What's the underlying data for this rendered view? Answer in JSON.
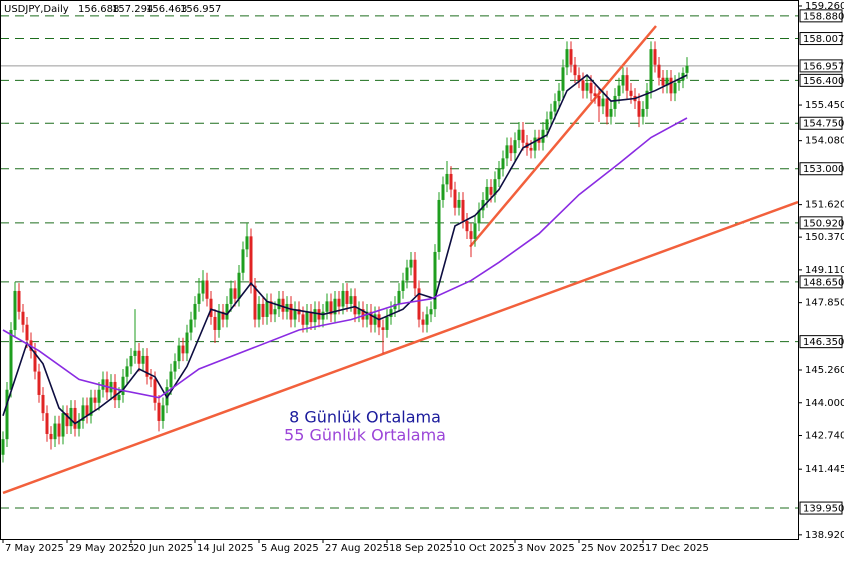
{
  "chart_data": {
    "type": "candlestick",
    "symbol": "USDJPY,Daily",
    "up_color": "#1f9e1f",
    "down_color": "#e02424",
    "xlim": [
      -0.75,
      198.75
    ],
    "ylim": [
      138.76,
      159.49
    ],
    "yticks": [
      {
        "value": 159.26,
        "label": "159.260"
      },
      {
        "value": 155.45,
        "label": "155.450"
      },
      {
        "value": 154.08,
        "label": "154.080"
      },
      {
        "value": 151.62,
        "label": "151.620"
      },
      {
        "value": 150.37,
        "label": "150.370"
      },
      {
        "value": 149.11,
        "label": "149.110"
      },
      {
        "value": 147.85,
        "label": "147.850"
      },
      {
        "value": 145.26,
        "label": "145.260"
      },
      {
        "value": 144.0,
        "label": "144.000"
      },
      {
        "value": 142.74,
        "label": "142.740"
      },
      {
        "value": 141.445,
        "label": "141.445"
      },
      {
        "value": 138.92,
        "label": "138.920"
      }
    ],
    "xticks": [
      {
        "value": 0,
        "label": "7 May 2025"
      },
      {
        "value": 16,
        "label": "29 May 2025"
      },
      {
        "value": 32,
        "label": "20 Jun 2025"
      },
      {
        "value": 48,
        "label": "14 Jul 2025"
      },
      {
        "value": 64,
        "label": "5 Aug 2025"
      },
      {
        "value": 80,
        "label": "27 Aug 2025"
      },
      {
        "value": 96,
        "label": "18 Sep 2025"
      },
      {
        "value": 112,
        "label": "10 Oct 2025"
      },
      {
        "value": 128,
        "label": "3 Nov 2025"
      },
      {
        "value": 144,
        "label": "25 Nov 2025"
      },
      {
        "value": 160,
        "label": "17 Dec 2025"
      }
    ],
    "levels_color": "#1d6e1d",
    "current_color": "#9a9a9a",
    "levels": [
      {
        "value": 158.88,
        "label": "158.880"
      },
      {
        "value": 158.007,
        "label": "158.007"
      },
      {
        "value": 156.4,
        "label": "156.400"
      },
      {
        "value": 154.75,
        "label": "154.750"
      },
      {
        "value": 153.0,
        "label": "153.000"
      },
      {
        "value": 150.92,
        "label": "150.920"
      },
      {
        "value": 148.65,
        "label": "148.650"
      },
      {
        "value": 146.35,
        "label": "146.350"
      },
      {
        "value": 139.95,
        "label": "139.950"
      }
    ],
    "candles": [
      [
        142.0,
        142.9,
        141.7,
        142.6
      ],
      [
        142.6,
        144.8,
        142.3,
        144.5
      ],
      [
        144.5,
        147.1,
        144.2,
        146.8
      ],
      [
        146.8,
        148.65,
        146.5,
        148.3
      ],
      [
        148.3,
        148.6,
        147.2,
        147.5
      ],
      [
        147.5,
        147.8,
        146.7,
        147.0
      ],
      [
        147.0,
        147.3,
        146.1,
        146.4
      ],
      [
        146.4,
        146.7,
        145.7,
        146.0
      ],
      [
        146.0,
        146.3,
        144.9,
        145.2
      ],
      [
        145.2,
        145.5,
        144.0,
        144.3
      ],
      [
        144.3,
        144.6,
        143.3,
        143.6
      ],
      [
        143.6,
        143.9,
        142.5,
        142.8
      ],
      [
        142.8,
        143.1,
        142.2,
        142.6
      ],
      [
        142.6,
        143.5,
        142.3,
        143.2
      ],
      [
        143.2,
        143.5,
        142.4,
        142.7
      ],
      [
        142.7,
        143.9,
        142.4,
        143.6
      ],
      [
        143.6,
        143.9,
        142.8,
        143.1
      ],
      [
        143.1,
        144.1,
        142.8,
        143.8
      ],
      [
        143.8,
        144.1,
        142.7,
        143.0
      ],
      [
        143.0,
        143.6,
        142.7,
        143.3
      ],
      [
        143.3,
        144.2,
        143.0,
        143.9
      ],
      [
        143.9,
        144.2,
        143.2,
        143.5
      ],
      [
        143.5,
        144.5,
        143.2,
        144.2
      ],
      [
        144.2,
        144.5,
        143.7,
        144.0
      ],
      [
        144.0,
        144.8,
        143.7,
        144.5
      ],
      [
        144.5,
        145.2,
        144.2,
        144.9
      ],
      [
        144.9,
        145.2,
        144.1,
        144.4
      ],
      [
        144.4,
        145.1,
        144.1,
        144.8
      ],
      [
        144.8,
        145.1,
        143.8,
        144.1
      ],
      [
        144.1,
        144.6,
        143.8,
        144.3
      ],
      [
        144.3,
        145.3,
        144.0,
        145.0
      ],
      [
        145.0,
        145.7,
        144.7,
        145.4
      ],
      [
        145.4,
        146.1,
        145.1,
        145.8
      ],
      [
        145.8,
        147.6,
        145.5,
        146.0
      ],
      [
        146.0,
        146.3,
        145.2,
        145.5
      ],
      [
        145.5,
        146.1,
        145.2,
        145.8
      ],
      [
        145.8,
        146.1,
        144.7,
        145.0
      ],
      [
        145.0,
        145.3,
        144.6,
        144.9
      ],
      [
        144.9,
        145.2,
        143.7,
        144.0
      ],
      [
        144.0,
        144.3,
        142.9,
        143.3
      ],
      [
        143.3,
        144.2,
        143.0,
        143.9
      ],
      [
        143.9,
        144.9,
        143.6,
        144.6
      ],
      [
        144.6,
        145.5,
        144.3,
        145.2
      ],
      [
        145.2,
        145.9,
        144.9,
        145.6
      ],
      [
        145.6,
        146.5,
        145.3,
        146.2
      ],
      [
        146.2,
        146.5,
        145.6,
        145.9
      ],
      [
        145.9,
        147.0,
        145.6,
        146.7
      ],
      [
        146.7,
        147.5,
        146.4,
        147.2
      ],
      [
        147.2,
        148.1,
        146.9,
        147.8
      ],
      [
        147.8,
        148.8,
        147.5,
        148.2
      ],
      [
        148.2,
        149.1,
        147.9,
        148.7
      ],
      [
        148.7,
        149.0,
        147.7,
        148.0
      ],
      [
        148.0,
        148.3,
        147.0,
        147.3
      ],
      [
        147.3,
        147.6,
        146.3,
        146.8
      ],
      [
        146.8,
        147.8,
        146.5,
        147.5
      ],
      [
        147.5,
        147.8,
        146.9,
        147.2
      ],
      [
        147.2,
        148.1,
        146.9,
        147.8
      ],
      [
        147.8,
        148.7,
        147.5,
        148.4
      ],
      [
        148.4,
        148.7,
        147.7,
        148.0
      ],
      [
        148.0,
        149.3,
        147.7,
        149.0
      ],
      [
        149.0,
        150.2,
        148.7,
        149.9
      ],
      [
        149.9,
        150.9,
        149.6,
        150.4
      ],
      [
        150.4,
        150.7,
        148.2,
        148.5
      ],
      [
        148.5,
        148.8,
        146.9,
        147.2
      ],
      [
        147.2,
        148.1,
        146.9,
        147.8
      ],
      [
        147.8,
        148.1,
        147.0,
        147.3
      ],
      [
        147.3,
        148.2,
        147.0,
        147.9
      ],
      [
        147.9,
        148.2,
        147.1,
        147.4
      ],
      [
        147.4,
        147.9,
        147.1,
        147.6
      ],
      [
        147.6,
        148.3,
        147.3,
        148.0
      ],
      [
        148.0,
        148.3,
        147.2,
        147.5
      ],
      [
        147.5,
        148.1,
        147.2,
        147.8
      ],
      [
        147.8,
        148.1,
        146.9,
        147.2
      ],
      [
        147.2,
        147.9,
        146.9,
        147.6
      ],
      [
        147.6,
        147.9,
        147.1,
        147.4
      ],
      [
        147.4,
        147.7,
        146.7,
        147.0
      ],
      [
        147.0,
        147.8,
        146.7,
        147.5
      ],
      [
        147.5,
        147.8,
        146.8,
        147.1
      ],
      [
        147.1,
        147.9,
        146.8,
        147.6
      ],
      [
        147.6,
        147.9,
        146.9,
        147.2
      ],
      [
        147.2,
        147.8,
        146.9,
        147.5
      ],
      [
        147.5,
        148.2,
        147.2,
        147.9
      ],
      [
        147.9,
        148.2,
        147.1,
        147.4
      ],
      [
        147.4,
        148.3,
        147.1,
        148.0
      ],
      [
        148.0,
        148.3,
        147.4,
        147.7
      ],
      [
        147.7,
        148.6,
        147.4,
        148.3
      ],
      [
        148.3,
        148.6,
        147.5,
        147.8
      ],
      [
        147.8,
        148.4,
        147.5,
        148.1
      ],
      [
        148.1,
        148.4,
        147.1,
        147.4
      ],
      [
        147.4,
        147.9,
        147.1,
        147.6
      ],
      [
        147.6,
        147.9,
        146.9,
        147.2
      ],
      [
        147.2,
        147.8,
        146.9,
        147.5
      ],
      [
        147.5,
        147.8,
        146.7,
        147.0
      ],
      [
        147.0,
        147.7,
        146.7,
        147.4
      ],
      [
        147.4,
        147.7,
        146.6,
        146.9
      ],
      [
        146.9,
        147.2,
        145.9,
        146.8
      ],
      [
        146.8,
        147.6,
        146.5,
        147.3
      ],
      [
        147.3,
        147.9,
        147.0,
        147.6
      ],
      [
        147.6,
        148.1,
        147.3,
        147.8
      ],
      [
        147.8,
        148.6,
        147.5,
        148.3
      ],
      [
        148.3,
        149.0,
        148.0,
        148.7
      ],
      [
        148.7,
        149.5,
        148.4,
        149.2
      ],
      [
        149.2,
        149.8,
        148.9,
        149.5
      ],
      [
        149.5,
        149.8,
        148.1,
        148.4
      ],
      [
        148.4,
        148.7,
        146.9,
        147.2
      ],
      [
        147.2,
        147.5,
        146.7,
        147.0
      ],
      [
        147.0,
        147.7,
        146.7,
        147.4
      ],
      [
        147.4,
        147.9,
        147.1,
        147.6
      ],
      [
        147.6,
        150.1,
        147.3,
        149.8
      ],
      [
        149.8,
        152.1,
        149.5,
        151.8
      ],
      [
        151.8,
        152.7,
        151.5,
        152.4
      ],
      [
        152.4,
        153.3,
        152.1,
        152.8
      ],
      [
        152.8,
        153.1,
        151.9,
        152.2
      ],
      [
        152.2,
        152.5,
        151.2,
        151.5
      ],
      [
        151.5,
        152.1,
        151.2,
        151.8
      ],
      [
        151.8,
        152.1,
        150.7,
        151.0
      ],
      [
        151.0,
        151.3,
        150.3,
        150.6
      ],
      [
        150.6,
        150.9,
        149.6,
        150.3
      ],
      [
        150.3,
        151.2,
        150.0,
        150.9
      ],
      [
        150.9,
        151.7,
        150.6,
        151.4
      ],
      [
        151.4,
        152.1,
        151.1,
        151.8
      ],
      [
        151.8,
        152.6,
        151.5,
        152.3
      ],
      [
        152.3,
        152.6,
        151.7,
        152.0
      ],
      [
        152.0,
        152.9,
        151.7,
        152.6
      ],
      [
        152.6,
        153.3,
        152.3,
        153.0
      ],
      [
        153.0,
        153.7,
        152.7,
        153.4
      ],
      [
        153.4,
        154.2,
        153.1,
        153.9
      ],
      [
        153.9,
        154.2,
        153.3,
        153.6
      ],
      [
        153.6,
        154.4,
        153.3,
        154.1
      ],
      [
        154.1,
        154.8,
        153.8,
        154.5
      ],
      [
        154.5,
        154.8,
        153.7,
        154.0
      ],
      [
        154.0,
        154.3,
        153.5,
        153.8
      ],
      [
        153.8,
        154.1,
        153.4,
        153.7
      ],
      [
        153.7,
        154.5,
        153.4,
        154.2
      ],
      [
        154.2,
        154.5,
        153.7,
        154.0
      ],
      [
        154.0,
        154.8,
        153.7,
        154.5
      ],
      [
        154.5,
        155.2,
        154.2,
        154.9
      ],
      [
        154.9,
        155.5,
        154.6,
        155.2
      ],
      [
        155.2,
        155.9,
        154.9,
        155.6
      ],
      [
        155.6,
        156.3,
        155.3,
        156.0
      ],
      [
        156.0,
        157.2,
        155.7,
        156.9
      ],
      [
        156.9,
        157.9,
        156.6,
        157.6
      ],
      [
        157.6,
        157.9,
        156.7,
        157.0
      ],
      [
        157.0,
        157.3,
        156.3,
        156.6
      ],
      [
        156.6,
        156.9,
        156.1,
        156.4
      ],
      [
        156.4,
        156.7,
        155.7,
        156.0
      ],
      [
        156.0,
        156.6,
        155.7,
        156.3
      ],
      [
        156.3,
        156.6,
        155.6,
        155.9
      ],
      [
        155.9,
        156.2,
        155.5,
        155.8
      ],
      [
        155.8,
        156.1,
        154.8,
        155.4
      ],
      [
        155.4,
        156.0,
        155.1,
        155.7
      ],
      [
        155.7,
        156.0,
        154.7,
        155.0
      ],
      [
        155.0,
        155.6,
        154.7,
        155.3
      ],
      [
        155.3,
        156.1,
        155.0,
        155.8
      ],
      [
        155.8,
        156.5,
        155.5,
        156.2
      ],
      [
        156.2,
        156.9,
        155.9,
        156.6
      ],
      [
        156.6,
        156.9,
        155.7,
        156.0
      ],
      [
        156.0,
        156.3,
        155.5,
        155.8
      ],
      [
        155.8,
        156.1,
        155.3,
        155.6
      ],
      [
        155.6,
        155.9,
        154.6,
        155.0
      ],
      [
        155.0,
        155.6,
        154.7,
        155.3
      ],
      [
        155.3,
        156.3,
        155.0,
        156.0
      ],
      [
        156.0,
        157.9,
        155.7,
        157.6
      ],
      [
        157.6,
        157.9,
        156.7,
        157.0
      ],
      [
        157.0,
        157.3,
        156.2,
        156.5
      ],
      [
        156.5,
        156.8,
        155.9,
        156.2
      ],
      [
        156.2,
        156.8,
        155.9,
        156.5
      ],
      [
        156.5,
        156.8,
        155.6,
        155.9
      ],
      [
        155.9,
        156.6,
        155.6,
        156.3
      ],
      [
        156.3,
        156.7,
        156.0,
        156.4
      ],
      [
        156.4,
        156.9,
        156.1,
        156.688
      ],
      [
        156.688,
        157.294,
        156.463,
        156.957
      ]
    ],
    "series": [
      {
        "name": "8 Günlük Ortalama",
        "color": "#1b1b9c",
        "line_color": "#0d0d40",
        "x": [
          0,
          6,
          10,
          14,
          18,
          24,
          30,
          34,
          38,
          41,
          46,
          52,
          56,
          62,
          66,
          72,
          80,
          88,
          94,
          100,
          104,
          108,
          113,
          118,
          124,
          130,
          136,
          141,
          146,
          152,
          158,
          163,
          171
        ],
        "values": [
          143.5,
          146.3,
          145.5,
          143.8,
          143.2,
          143.8,
          144.5,
          145.3,
          145.0,
          144.2,
          145.4,
          147.6,
          147.4,
          148.6,
          147.9,
          147.6,
          147.4,
          147.7,
          147.2,
          147.6,
          148.2,
          148.0,
          150.8,
          151.2,
          152.2,
          153.8,
          154.3,
          156.0,
          156.6,
          155.6,
          155.7,
          156.0,
          156.6
        ]
      },
      {
        "name": "55 Günlük Ortalama",
        "color": "#9b45d8",
        "line_color": "#8a2be2",
        "x": [
          0,
          9,
          19,
          29,
          39,
          49,
          74,
          87,
          99,
          107,
          117,
          124,
          134,
          144,
          154,
          162,
          171
        ],
        "values": [
          146.8,
          146.0,
          144.9,
          144.5,
          144.2,
          145.3,
          146.8,
          147.2,
          147.8,
          148.0,
          148.7,
          149.4,
          150.5,
          152.0,
          153.2,
          154.2,
          154.95
        ]
      }
    ],
    "trendlines": [
      {
        "color": "#f2603c",
        "x": [
          0,
          198.75
        ],
        "values": [
          140.53,
          151.72
        ]
      },
      {
        "color": "#f2603c",
        "x": [
          116.75,
          163.25
        ],
        "values": [
          150.0,
          158.49
        ]
      }
    ]
  }
}
